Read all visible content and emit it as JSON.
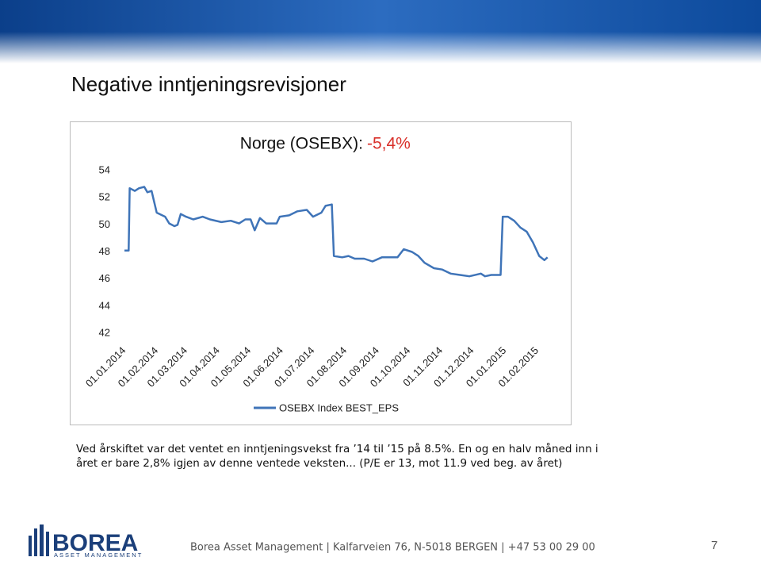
{
  "slide": {
    "title": "Negative inntjeningsrevisjoner",
    "body": [
      "Ved årskiftet var det ventet en inntjeningsvekst fra ’14 til ’15 på 8.5%. En og en halv måned inn i",
      "året er bare 2,8% igjen av denne ventede veksten... (P/E er 13, mot 11.9 ved beg. av året)"
    ],
    "footer": "Borea Asset Management | Kalfarveien 76, N-5018 BERGEN | +47 53 00 29 00",
    "page_number": "7",
    "logo": {
      "name": "BOREA",
      "tagline": "ASSET MANAGEMENT"
    }
  },
  "chart_data": {
    "type": "line",
    "title": "Norge (OSEBX):",
    "title_change": "-5,4%",
    "x": [
      "01.01.2014",
      "05.01.2014",
      "06.01.2014",
      "11.01.2014",
      "15.01.2014",
      "20.01.2014",
      "23.01.2014",
      "27.01.2014",
      "01.02.2014",
      "09.02.2014",
      "13.02.2014",
      "18.02.2014",
      "21.02.2014",
      "24.02.2014",
      "01.03.2014",
      "08.03.2014",
      "17.03.2014",
      "24.03.2014",
      "04.04.2014",
      "13.04.2014",
      "21.04.2014",
      "27.04.2014",
      "02.05.2014",
      "06.05.2014",
      "11.05.2014",
      "17.05.2014",
      "27.05.2014",
      "30.05.2014",
      "08.06.2014",
      "16.06.2014",
      "25.06.2014",
      "01.07.2014",
      "09.07.2014",
      "13.07.2014",
      "19.07.2014",
      "21.07.2014",
      "29.07.2014",
      "04.08.2014",
      "10.08.2014",
      "19.08.2014",
      "27.08.2014",
      "05.09.2014",
      "14.09.2014",
      "20.09.2014",
      "26.09.2014",
      "04.10.2014",
      "10.10.2014",
      "16.10.2014",
      "25.10.2014",
      "02.11.2014",
      "10.11.2014",
      "19.11.2014",
      "28.11.2014",
      "09.12.2014",
      "13.12.2014",
      "19.12.2014",
      "28.12.2014",
      "30.12.2014",
      "04.01.2015",
      "10.01.2015",
      "16.01.2015",
      "22.01.2015",
      "28.01.2015",
      "03.02.2015",
      "08.02.2015",
      "11.02.2015"
    ],
    "series": [
      {
        "name": "OSEBX Index BEST_EPS",
        "color": "#3f74b8",
        "values": [
          48.1,
          48.1,
          52.7,
          52.5,
          52.7,
          52.8,
          52.4,
          52.5,
          50.9,
          50.6,
          50.1,
          49.9,
          50.0,
          50.8,
          50.6,
          50.4,
          50.6,
          50.4,
          50.2,
          50.3,
          50.1,
          50.4,
          50.4,
          49.6,
          50.5,
          50.1,
          50.1,
          50.6,
          50.7,
          51.0,
          51.1,
          50.6,
          50.9,
          51.4,
          51.5,
          47.7,
          47.6,
          47.7,
          47.5,
          47.5,
          47.3,
          47.6,
          47.6,
          47.6,
          48.2,
          48.0,
          47.7,
          47.2,
          46.8,
          46.7,
          46.4,
          46.3,
          46.2,
          46.4,
          46.2,
          46.3,
          46.3,
          50.6,
          50.6,
          50.3,
          49.8,
          49.5,
          48.7,
          47.7,
          47.4,
          47.6
        ]
      }
    ],
    "xlim": [
      "01.01.2014",
      "12.02.2015"
    ],
    "xticks": [
      "01.01.2014",
      "01.02.2014",
      "01.03.2014",
      "01.04.2014",
      "01.05.2014",
      "01.06.2014",
      "01.07.2014",
      "01.08.2014",
      "01.09.2014",
      "01.10.2014",
      "01.11.2014",
      "01.12.2014",
      "01.01.2015",
      "01.02.2015"
    ],
    "ylim": [
      42,
      54
    ],
    "yticks": [
      42,
      44,
      46,
      48,
      50,
      52,
      54
    ],
    "grid": false,
    "legend": "bottom"
  }
}
